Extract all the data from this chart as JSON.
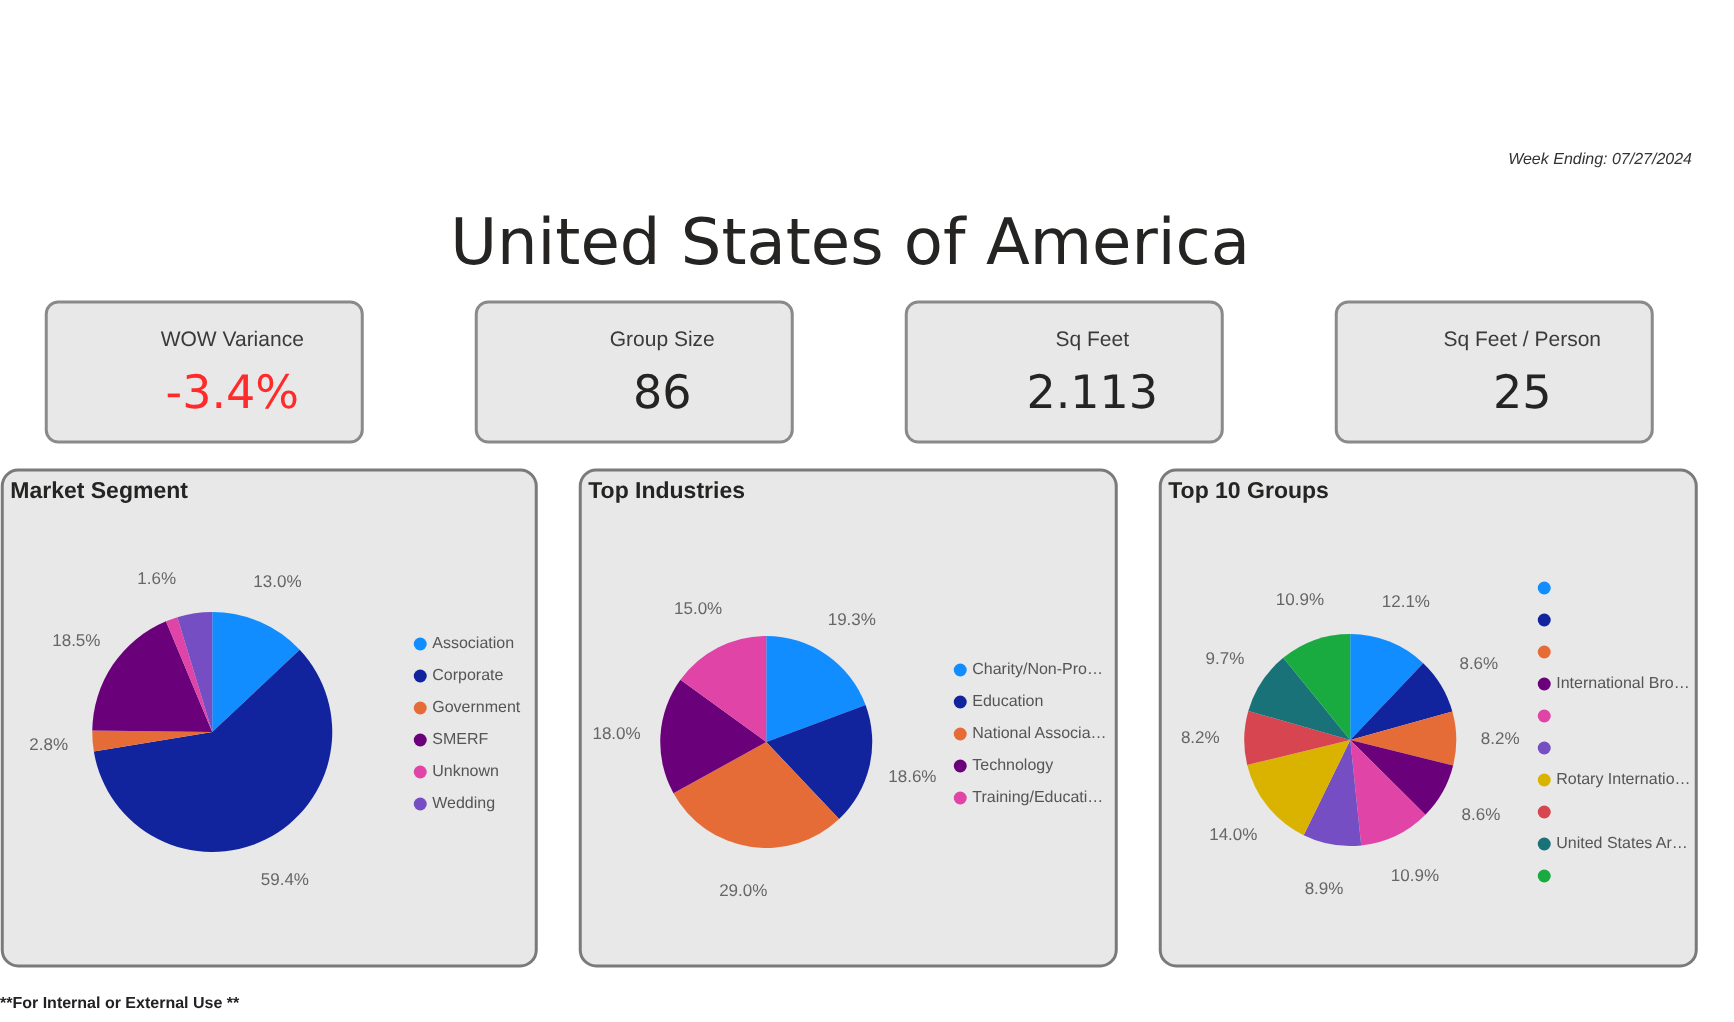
{
  "chart_data": [
    {
      "type": "other",
      "title": "United States of America",
      "annotations": [
        "Week Ending: 07/27/2024",
        "**For Internal or External Use **"
      ]
    },
    {
      "type": "other",
      "title": "WOW Variance",
      "annotations": [
        "-3.4%"
      ],
      "color": "#ff2a2a"
    },
    {
      "type": "other",
      "title": "Group Size",
      "annotations": [
        "86"
      ],
      "color": "#252423"
    },
    {
      "type": "other",
      "title": "Sq Feet",
      "annotations": [
        "2.113"
      ],
      "color": "#252423"
    },
    {
      "type": "other",
      "title": "Sq Feet / Person",
      "annotations": [
        "25"
      ],
      "color": "#252423"
    },
    {
      "type": "pie",
      "title": "Market Segment",
      "categories": [
        "Association",
        "Corporate",
        "Government",
        "SMERF",
        "Unknown",
        "Wedding"
      ],
      "values": [
        13.0,
        59.4,
        2.8,
        18.5,
        1.6,
        4.7
      ],
      "colors": [
        "#118dff",
        "#12239e",
        "#e66c37",
        "#6b007b",
        "#e044a7",
        "#744ec2"
      ],
      "value_labels": [
        "13.0%",
        "59.4%",
        "2.8%",
        "18.5%",
        "1.6%",
        null
      ],
      "legend": "right"
    },
    {
      "type": "pie",
      "title": "Top Industries",
      "categories": [
        "Charity/Non-Pro…",
        "Education",
        "National Associa…",
        "Technology",
        "Training/Educati…"
      ],
      "values": [
        19.3,
        18.6,
        29.0,
        18.0,
        15.0
      ],
      "colors": [
        "#118dff",
        "#12239e",
        "#e66c37",
        "#6b007b",
        "#e044a7"
      ],
      "value_labels": [
        "19.3%",
        "18.6%",
        "29.0%",
        "18.0%",
        "15.0%"
      ],
      "legend": "right"
    },
    {
      "type": "pie",
      "title": "Top 10 Groups",
      "categories": [
        null,
        null,
        null,
        "International Bro…",
        null,
        null,
        "Rotary Internatio…",
        null,
        "United States Ar…",
        null
      ],
      "values": [
        12.1,
        8.6,
        8.2,
        8.6,
        10.9,
        8.9,
        14.0,
        8.2,
        9.7,
        10.9
      ],
      "colors": [
        "#118dff",
        "#12239e",
        "#e66c37",
        "#6b007b",
        "#e044a7",
        "#744ec2",
        "#d9b300",
        "#d64550",
        "#197278",
        "#1aab40"
      ],
      "value_labels": [
        "12.1%",
        "8.6%",
        "8.2%",
        "8.6%",
        "10.9%",
        "8.9%",
        "14.0%",
        "8.2%",
        "9.7%",
        "10.9%"
      ],
      "legend": "right"
    }
  ]
}
